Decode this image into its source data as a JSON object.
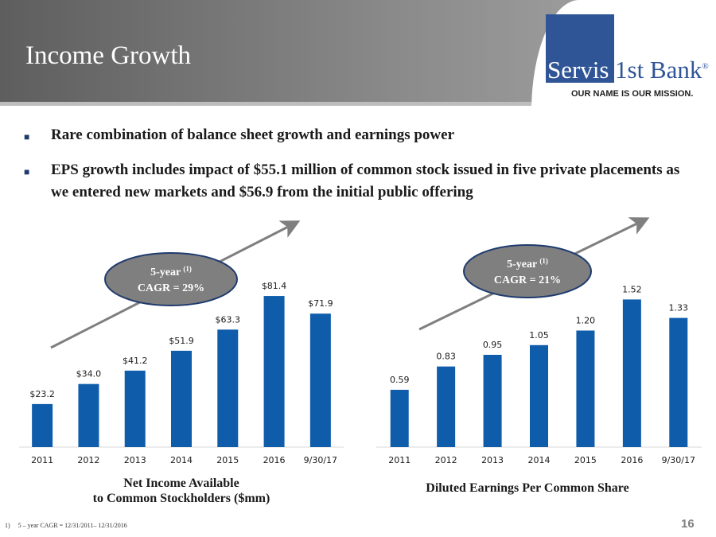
{
  "slide": {
    "title": "Income Growth",
    "page_number": "16",
    "footnote_marker": "1)",
    "footnote_text": "5 – year CAGR = 12/31/2011– 12/31/2016"
  },
  "logo": {
    "name_part1": "Servis",
    "name_part2": "1st Bank",
    "registered": "®",
    "tagline": "OUR NAME IS OUR MISSION."
  },
  "bullets": [
    "Rare combination of balance sheet growth and earnings power",
    "EPS growth includes impact of $55.1 million of common stock issued in five private placements as we entered new markets and $56.9 from the initial public offering"
  ],
  "colors": {
    "bar": "#0f5cab",
    "ellipse_fill": "#7f7f7f",
    "ellipse_border": "#1f3b6e",
    "arrow": "#7f7f7f"
  },
  "chart_data": [
    {
      "type": "bar",
      "categories": [
        "2011",
        "2012",
        "2013",
        "2014",
        "2015",
        "2016",
        "9/30/17"
      ],
      "values": [
        23.2,
        34.0,
        41.2,
        51.9,
        63.3,
        81.4,
        71.9
      ],
      "data_labels": [
        "$23.2",
        "$34.0",
        "$41.2",
        "$51.9",
        "$63.3",
        "$81.4",
        "$71.9"
      ],
      "title": "",
      "xlabel": "Net Income Available to Common Stockholders ($mm)",
      "xlabel_lines": [
        "Net Income Available",
        "to Common Stockholders ($mm)"
      ],
      "ylabel": "",
      "ylim": [
        0,
        90
      ],
      "grid": false,
      "annotation": {
        "line1": "5-year",
        "superscript": "(1)",
        "line2": "CAGR = 29%"
      }
    },
    {
      "type": "bar",
      "categories": [
        "2011",
        "2012",
        "2013",
        "2014",
        "2015",
        "2016",
        "9/30/17"
      ],
      "values": [
        0.59,
        0.83,
        0.95,
        1.05,
        1.2,
        1.52,
        1.33
      ],
      "data_labels": [
        "0.59",
        "0.83",
        "0.95",
        "1.05",
        "1.20",
        "1.52",
        "1.33"
      ],
      "title": "",
      "xlabel": "Diluted Earnings Per Common Share",
      "xlabel_lines": [
        "Diluted Earnings Per Common Share"
      ],
      "ylabel": "",
      "ylim": [
        0,
        1.7
      ],
      "grid": false,
      "annotation": {
        "line1": "5-year",
        "superscript": "(1)",
        "line2": "CAGR = 21%"
      }
    }
  ]
}
